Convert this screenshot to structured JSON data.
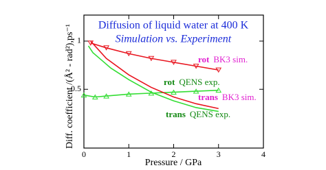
{
  "chart_data": {
    "type": "line",
    "title": "Diffusion  of liquid water at 400 K",
    "subtitle": "Simulation vs. Experiment",
    "x_label": "Pressure / GPa",
    "y_label": "Diff.  coefficient /(Å² - rad²),ps⁻¹",
    "xlim": [
      0,
      4
    ],
    "xticks": [
      0,
      1,
      2,
      3,
      4
    ],
    "ylim": [
      -0.11,
      1.27
    ],
    "yticks": [
      0.5,
      1
    ],
    "series": [
      {
        "name": "rot",
        "source": "BK3 sim.",
        "color": "#e8141e",
        "label_color": "#e020d0",
        "marker": "triangle-down",
        "x": [
          0.15,
          0.5,
          1,
          1.5,
          2,
          2.5,
          3
        ],
        "values": [
          0.98,
          0.93,
          0.87,
          0.82,
          0.78,
          0.74,
          0.7
        ]
      },
      {
        "name": "rot",
        "source": "QENS exp.",
        "color": "#33dd33",
        "label_color": "#118811",
        "marker": "triangle-up",
        "x": [
          0,
          0.25,
          0.5,
          1,
          1.5,
          2,
          2.5,
          3
        ],
        "values": [
          0.44,
          0.42,
          0.43,
          0.45,
          0.46,
          0.47,
          0.48,
          0.49
        ]
      },
      {
        "name": "trans",
        "source": "BK3 sim.",
        "color": "#e8141e",
        "label_color": "#e020d0",
        "marker": "none",
        "x": [
          0.15,
          0.5,
          1,
          1.5,
          2,
          2.5,
          3
        ],
        "values": [
          1.0,
          0.82,
          0.65,
          0.52,
          0.42,
          0.35,
          0.3
        ]
      },
      {
        "name": "trans",
        "source": "QENS exp.",
        "color": "#33dd33",
        "label_color": "#118811",
        "marker": "none",
        "x": [
          0.1,
          0.2,
          0.4,
          0.6,
          1,
          1.5,
          2,
          2.5,
          3
        ],
        "values": [
          0.95,
          0.88,
          0.8,
          0.72,
          0.6,
          0.47,
          0.38,
          0.31,
          0.27
        ]
      }
    ]
  }
}
